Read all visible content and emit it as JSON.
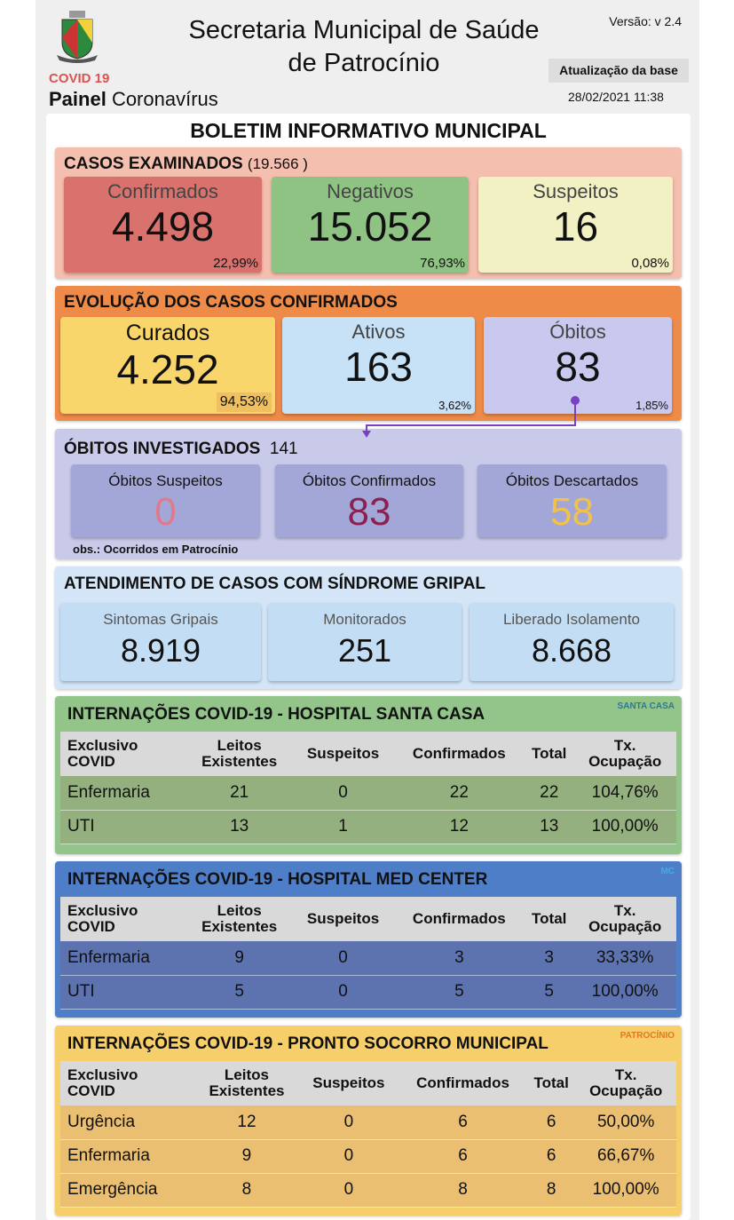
{
  "header": {
    "title_line1": "Secretaria Municipal de Saúde",
    "title_line2": "de Patrocínio",
    "version": "Versão: v 2.4",
    "update_button": "Atualização da base",
    "update_time": "28/02/2021 11:38",
    "covid_label": "COVID 19",
    "panel_bold": "Painel",
    "panel_rest": "Coronavírus",
    "logo_text": "PATROCÍNIO"
  },
  "bulletin_title": "BOLETIM INFORMATIVO MUNICIPAL",
  "examined": {
    "title": "CASOS EXAMINADOS",
    "total": "(19.566  )",
    "cards": [
      {
        "label": "Confirmados",
        "value": "4.498",
        "pct": "22,99%"
      },
      {
        "label": "Negativos",
        "value": "15.052",
        "pct": "76,93%"
      },
      {
        "label": "Suspeitos",
        "value": "16",
        "pct": "0,08%"
      }
    ]
  },
  "evolution": {
    "title": "EVOLUÇÃO DOS CASOS CONFIRMADOS",
    "cards": [
      {
        "label": "Curados",
        "value": "4.252",
        "pct": "94,53%"
      },
      {
        "label": "Ativos",
        "value": "163",
        "pct": "3,62%"
      },
      {
        "label": "Óbitos",
        "value": "83",
        "pct": "1,85%"
      }
    ]
  },
  "deaths": {
    "title": "ÓBITOS INVESTIGADOS",
    "total": "141",
    "cards": [
      {
        "label": "Óbitos Suspeitos",
        "value": "0"
      },
      {
        "label": "Óbitos Confirmados",
        "value": "83"
      },
      {
        "label": "Óbitos Descartados",
        "value": "58"
      }
    ],
    "note": "obs.: Ocorridos em Patrocínio"
  },
  "flu": {
    "title": "ATENDIMENTO DE CASOS COM SÍNDROME GRIPAL",
    "cards": [
      {
        "label": "Sintomas Gripais",
        "value": "8.919"
      },
      {
        "label": "Monitorados",
        "value": "251"
      },
      {
        "label": "Liberado Isolamento",
        "value": "8.668"
      }
    ]
  },
  "columns": [
    [
      "Exclusivo",
      "COVID"
    ],
    [
      "Leitos",
      "Existentes"
    ],
    [
      "Suspeitos",
      ""
    ],
    [
      "Confirmados",
      ""
    ],
    [
      "Total",
      ""
    ],
    [
      "Tx.",
      "Ocupação"
    ]
  ],
  "hospitals": [
    {
      "title": "INTERNAÇÕES COVID-19 - HOSPITAL SANTA CASA",
      "logo": "SANTA CASA",
      "rows": [
        [
          "Enfermaria",
          "21",
          "0",
          "22",
          "22",
          "104,76%"
        ],
        [
          "UTI",
          "13",
          "1",
          "12",
          "13",
          "100,00%"
        ]
      ]
    },
    {
      "title": "INTERNAÇÕES COVID-19 - HOSPITAL MED CENTER",
      "logo": "MC",
      "rows": [
        [
          "Enfermaria",
          "9",
          "0",
          "3",
          "3",
          "33,33%"
        ],
        [
          "UTI",
          "5",
          "0",
          "5",
          "5",
          "100,00%"
        ]
      ]
    },
    {
      "title": "INTERNAÇÕES COVID-19 - PRONTO SOCORRO MUNICIPAL",
      "logo": "PATROCÍNIO",
      "rows": [
        [
          "Urgência",
          "12",
          "0",
          "6",
          "6",
          "50,00%"
        ],
        [
          "Enfermaria",
          "9",
          "0",
          "6",
          "6",
          "66,67%"
        ],
        [
          "Emergência",
          "8",
          "0",
          "8",
          "8",
          "100,00%"
        ]
      ]
    }
  ],
  "colors": {
    "confirmados": "#d9716c",
    "negativos": "#8fc383",
    "suspeitos": "#f1f1c4",
    "curados": "#f8d66c",
    "ativos": "#c7e1f7",
    "obitos": "#c9c9ef"
  }
}
